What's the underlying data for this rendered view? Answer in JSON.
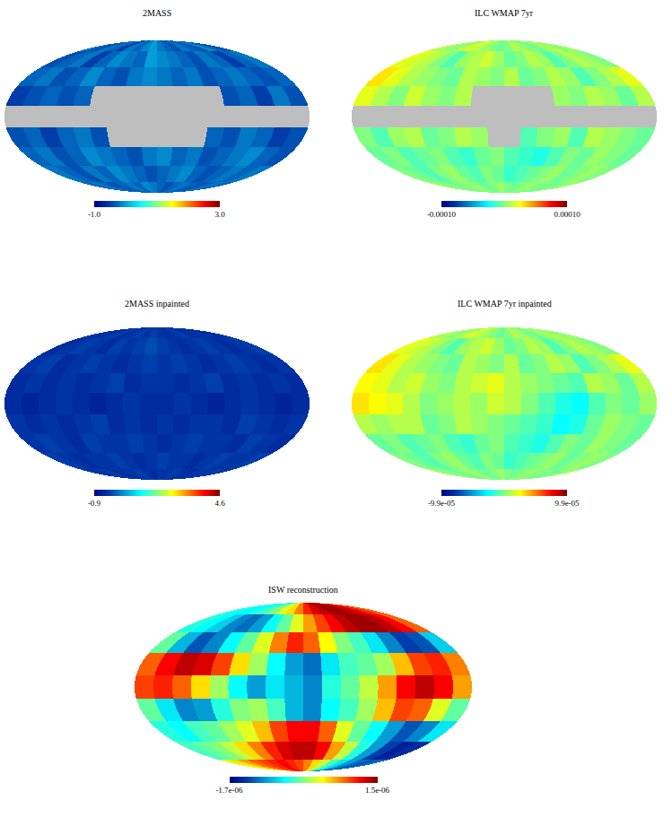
{
  "chart_data": [
    {
      "type": "map",
      "title": "2MASS",
      "tick_labels": false,
      "colorbar_range": [
        -1.0,
        3.0
      ],
      "colorbar_ticks": [
        {
          "value": -1.0,
          "label": "-1.0"
        },
        {
          "value": 3.0,
          "label": "3.0"
        }
      ],
      "cells": [
        [
          -0.3,
          -0.4,
          -0.2,
          -0.3,
          -0.5,
          -0.2,
          -0.3,
          -0.1,
          0,
          -0.2,
          -0.3,
          -0.4,
          -0.2,
          -0.3,
          -0.4,
          -0.1,
          -0.3,
          -0.4
        ],
        [
          -0.4,
          -0.3,
          -0.2,
          -0.5,
          -0.3,
          -0.1,
          -0.2,
          -0.3,
          0,
          -0.1,
          -0.2,
          -0.3,
          -0.4,
          -0.2,
          -0.3,
          -0.5,
          -0.3,
          -0.2
        ],
        [
          -0.3,
          -0.2,
          -0.4,
          -0.3,
          -0.1,
          -0.3,
          -0.4,
          -0.2,
          -0.1,
          -0.2,
          -0.3,
          -0.2,
          -0.4,
          -0.3,
          -0.2,
          -0.3,
          -0.4,
          -0.3
        ],
        [
          -0.5,
          -0.4,
          -0.3,
          -0.4,
          -0.3,
          null,
          null,
          null,
          null,
          null,
          null,
          null,
          null,
          -0.4,
          -0.3,
          -0.5,
          -0.2,
          -0.4
        ],
        [
          null,
          null,
          null,
          null,
          null,
          null,
          null,
          null,
          null,
          null,
          null,
          null,
          null,
          null,
          null,
          null,
          null,
          null
        ],
        [
          -0.4,
          -0.3,
          -0.5,
          -0.3,
          -0.2,
          -0.4,
          null,
          null,
          null,
          null,
          null,
          null,
          -0.3,
          -0.4,
          -0.2,
          -0.3,
          -0.5,
          -0.4
        ],
        [
          -0.3,
          -0.2,
          -0.4,
          -0.3,
          -0.1,
          -0.2,
          -0.3,
          -0.4,
          -0.2,
          -0.1,
          -0.3,
          -0.2,
          -0.4,
          -0.3,
          -0.2,
          -0.1,
          -0.3,
          -0.4
        ],
        [
          -0.2,
          -0.3,
          -0.4,
          -0.2,
          -0.3,
          -0.1,
          -0.2,
          -0.3,
          -0.4,
          -0.3,
          -0.2,
          -0.1,
          -0.3,
          -0.4,
          -0.3,
          -0.2,
          -0.3,
          -0.2
        ],
        [
          -0.3,
          -0.2,
          -0.3,
          -0.4,
          -0.3,
          -0.2,
          -0.3,
          -0.1,
          -0.2,
          -0.3,
          -0.4,
          -0.3,
          -0.2,
          -0.3,
          -0.4,
          -0.3,
          -0.2,
          -0.3
        ]
      ]
    },
    {
      "type": "map",
      "title": "ILC WMAP 7yr",
      "tick_labels": false,
      "colorbar_range": [
        -0.0001,
        0.0001
      ],
      "colorbar_ticks": [
        {
          "value": -0.0001,
          "label": "-0.00010"
        },
        {
          "value": 0.0001,
          "label": "0.00010"
        }
      ],
      "cells": [
        [
          1e-05,
          5e-06,
          0,
          1e-05,
          2e-05,
          1e-05,
          5e-06,
          0,
          -5e-06,
          0,
          1e-05,
          5e-06,
          0,
          -5e-06,
          5e-06,
          1e-05,
          0,
          5e-06
        ],
        [
          2e-05,
          1.5e-05,
          1e-05,
          0,
          -1e-05,
          5e-06,
          1e-05,
          1.5e-05,
          5e-06,
          -5e-06,
          0,
          1e-05,
          5e-06,
          -1e-05,
          0,
          1e-05,
          5e-06,
          0
        ],
        [
          3e-05,
          2e-05,
          1e-05,
          5e-06,
          0,
          -5e-06,
          1e-05,
          5e-06,
          0,
          1e-05,
          -5e-06,
          0,
          1e-05,
          5e-06,
          -1e-05,
          0,
          1e-05,
          2e-05
        ],
        [
          2e-05,
          1e-05,
          0,
          1.5e-05,
          5e-06,
          0,
          1e-05,
          null,
          null,
          null,
          null,
          null,
          5e-06,
          0,
          1e-05,
          5e-06,
          -5e-06,
          1e-05
        ],
        [
          null,
          null,
          null,
          null,
          null,
          null,
          null,
          null,
          null,
          null,
          null,
          null,
          null,
          null,
          null,
          null,
          null,
          null
        ],
        [
          0,
          -1e-05,
          5e-06,
          1e-05,
          -5e-06,
          0,
          1e-05,
          5e-06,
          null,
          null,
          -1e-05,
          0,
          5e-06,
          -1e-05,
          1e-05,
          5e-06,
          0,
          -5e-06
        ],
        [
          -5e-06,
          0,
          -1e-05,
          -5e-06,
          0,
          -1e-05,
          -1.5e-05,
          -5e-06,
          0,
          -1e-05,
          -1.5e-05,
          -2e-05,
          -1e-05,
          0,
          -5e-06,
          5e-06,
          0,
          -5e-06
        ],
        [
          0,
          -5e-06,
          -1e-05,
          0,
          5e-06,
          -5e-06,
          -1e-05,
          0,
          -5e-06,
          -1.5e-05,
          -1e-05,
          -5e-06,
          0,
          5e-06,
          -5e-06,
          0,
          5e-06,
          0
        ],
        [
          5e-06,
          0,
          -5e-06,
          0,
          5e-06,
          0,
          -5e-06,
          0,
          5e-06,
          0,
          -5e-06,
          0,
          5e-06,
          0,
          0,
          -5e-06,
          0,
          5e-06
        ]
      ]
    },
    {
      "type": "map",
      "title": "2MASS inpainted",
      "tick_labels": false,
      "colorbar_range": [
        -0.9,
        4.6
      ],
      "colorbar_ticks": [
        -0.9,
        4.6
      ],
      "cells": [
        [
          -0.3,
          -0.4,
          -0.3,
          -0.2,
          -0.4,
          -0.3,
          -0.2,
          -0.3,
          -0.2,
          -0.3,
          -0.4,
          -0.3,
          -0.2,
          -0.4,
          -0.3,
          -0.3,
          -0.4,
          -0.3
        ],
        [
          -0.4,
          -0.3,
          -0.2,
          -0.3,
          -0.4,
          -0.2,
          -0.3,
          -0.2,
          -0.1,
          -0.2,
          -0.3,
          -0.4,
          -0.3,
          -0.2,
          -0.3,
          -0.4,
          -0.3,
          -0.2
        ],
        [
          -0.3,
          -0.2,
          -0.4,
          -0.3,
          -0.2,
          -0.3,
          -0.4,
          -0.3,
          -0.2,
          -0.3,
          -0.2,
          -0.3,
          -0.4,
          -0.3,
          -0.2,
          -0.3,
          -0.4,
          -0.3
        ],
        [
          -0.4,
          -0.3,
          -0.4,
          -0.3,
          -0.4,
          -0.3,
          -0.2,
          -0.4,
          -0.3,
          -0.3,
          -0.4,
          -0.3,
          -0.2,
          -0.4,
          -0.3,
          -0.4,
          -0.3,
          -0.4
        ],
        [
          -0.4,
          -0.5,
          -0.4,
          -0.3,
          -0.4,
          -0.5,
          -0.4,
          -0.3,
          -0.4,
          -0.4,
          -0.3,
          -0.4,
          -0.5,
          -0.4,
          -0.3,
          -0.4,
          -0.5,
          -0.4
        ],
        [
          -0.3,
          -0.4,
          -0.3,
          -0.4,
          -0.3,
          -0.2,
          -0.4,
          -0.3,
          -0.4,
          -0.3,
          -0.4,
          -0.3,
          -0.3,
          -0.4,
          -0.2,
          -0.3,
          -0.4,
          -0.3
        ],
        [
          -0.3,
          -0.2,
          -0.3,
          -0.4,
          -0.2,
          -0.3,
          -0.3,
          -0.2,
          -0.3,
          -0.4,
          -0.3,
          -0.2,
          -0.3,
          -0.3,
          -0.4,
          -0.2,
          -0.3,
          -0.4
        ],
        [
          -0.2,
          -0.3,
          -0.4,
          -0.3,
          -0.3,
          -0.2,
          -0.3,
          -0.4,
          -0.3,
          -0.2,
          -0.3,
          -0.3,
          -0.4,
          -0.3,
          -0.2,
          -0.3,
          -0.3,
          -0.2
        ],
        [
          -0.3,
          -0.3,
          -0.2,
          -0.4,
          -0.3,
          -0.3,
          -0.2,
          -0.3,
          -0.4,
          -0.3,
          -0.3,
          -0.2,
          -0.3,
          -0.4,
          -0.3,
          -0.3,
          -0.2,
          -0.3
        ]
      ]
    },
    {
      "type": "map",
      "title": "ILC WMAP 7yr inpainted",
      "tick_labels": false,
      "colorbar_range": [
        -9.9e-05,
        9.9e-05
      ],
      "colorbar_ticks": [
        {
          "value": -9.9e-05,
          "label": "-9.9e-05"
        },
        {
          "value": 9.9e-05,
          "label": "9.9e-05"
        }
      ],
      "cells": [
        [
          1e-05,
          5e-06,
          0,
          1e-05,
          2e-05,
          1e-05,
          5e-06,
          0,
          -5e-06,
          0,
          1e-05,
          5e-06,
          0,
          -5e-06,
          5e-06,
          1e-05,
          0,
          5e-06
        ],
        [
          2e-05,
          1.5e-05,
          1e-05,
          0,
          -1e-05,
          5e-06,
          1e-05,
          1.5e-05,
          5e-06,
          -5e-06,
          0,
          1e-05,
          5e-06,
          -1e-05,
          0,
          1e-05,
          5e-06,
          0
        ],
        [
          3e-05,
          2e-05,
          1e-05,
          5e-06,
          0,
          -5e-06,
          1e-05,
          5e-06,
          0,
          1e-05,
          -5e-06,
          0,
          1e-05,
          5e-06,
          -1e-05,
          0,
          1e-05,
          2e-05
        ],
        [
          2.5e-05,
          2e-05,
          1e-05,
          1.5e-05,
          5e-06,
          0,
          1e-05,
          1.5e-05,
          2e-05,
          1e-05,
          5e-06,
          0,
          -5e-06,
          -1e-05,
          1e-05,
          5e-06,
          -5e-06,
          1e-05
        ],
        [
          3e-05,
          2.5e-05,
          2e-05,
          1e-05,
          0,
          5e-06,
          1e-05,
          5e-06,
          1.5e-05,
          1e-05,
          0,
          -1e-05,
          -2e-05,
          -2.5e-05,
          -1e-05,
          0,
          -5e-06,
          5e-06
        ],
        [
          1e-05,
          5e-06,
          1e-05,
          1e-05,
          -5e-06,
          0,
          1e-05,
          5e-06,
          0,
          -5e-06,
          -1e-05,
          -1.5e-05,
          -2.5e-05,
          -2e-05,
          -5e-06,
          5e-06,
          0,
          -5e-06
        ],
        [
          -5e-06,
          0,
          -1e-05,
          -5e-06,
          0,
          -1e-05,
          -1.5e-05,
          -5e-06,
          0,
          -1e-05,
          -1.5e-05,
          -2e-05,
          -1e-05,
          0,
          -5e-06,
          5e-06,
          0,
          -5e-06
        ],
        [
          0,
          -5e-06,
          -1e-05,
          0,
          5e-06,
          -5e-06,
          -1e-05,
          0,
          -5e-06,
          -1.5e-05,
          -1e-05,
          -5e-06,
          0,
          5e-06,
          -5e-06,
          0,
          5e-06,
          0
        ],
        [
          5e-06,
          0,
          -5e-06,
          0,
          5e-06,
          0,
          -5e-06,
          0,
          5e-06,
          0,
          -5e-06,
          0,
          5e-06,
          0,
          0,
          -5e-06,
          0,
          5e-06
        ]
      ]
    },
    {
      "type": "map",
      "title": "ISW reconstruction",
      "tick_labels": false,
      "colorbar_range": [
        -1.7e-06,
        1.5e-06
      ],
      "colorbar_ticks": [
        {
          "value": -1.7e-06,
          "label": "-1.7e-06"
        },
        {
          "value": 1.5e-06,
          "label": "1.5e-06"
        }
      ],
      "cells": [
        [
          -4e-07,
          -5e-07,
          -5e-07,
          -4e-07,
          -3e-07,
          -1e-07,
          2e-07,
          4e-07,
          7e-07,
          1e-06,
          1.2e-06,
          1.3e-06,
          1.4e-06,
          1.4e-06,
          1.3e-06,
          1.2e-06,
          1e-06,
          8e-07
        ],
        [
          -4e-07,
          -5e-07,
          -7e-07,
          -1e-06,
          -1.1e-06,
          -9e-07,
          -5e-07,
          -2e-07,
          2e-07,
          6e-07,
          9e-07,
          1.1e-06,
          1.3e-06,
          1.4e-06,
          1.4e-06,
          1.3e-06,
          1.1e-06,
          8e-07
        ],
        [
          -2e-07,
          -8e-07,
          -1.2e-06,
          -1e-06,
          -5e-07,
          -2e-07,
          2e-07,
          7e-07,
          1e-06,
          8e-07,
          3e-07,
          -1e-07,
          -3e-07,
          -6e-07,
          -1e-06,
          -1.3e-06,
          -1.2e-06,
          -7e-07
        ],
        [
          8e-07,
          1.1e-06,
          1.3e-06,
          1.2e-06,
          9e-07,
          4e-07,
          0,
          -5e-07,
          -9e-07,
          -1.1e-06,
          -6e-07,
          -3e-07,
          -2e-07,
          0,
          5e-07,
          9e-07,
          1e-06,
          7e-07
        ],
        [
          9e-07,
          1e-06,
          8e-07,
          4e-07,
          0,
          -5e-07,
          -9e-07,
          -6e-07,
          -8e-07,
          -1e-06,
          -4e-07,
          -2e-07,
          1e-07,
          6e-07,
          1.1e-06,
          1.3e-06,
          1.1e-06,
          6e-07
        ],
        [
          -2e-07,
          -6e-07,
          -1e-06,
          -9e-07,
          -4e-07,
          -1e-07,
          0,
          -3e-07,
          -8e-07,
          -1e-06,
          -5e-07,
          -3e-07,
          0,
          5e-07,
          9e-07,
          8e-07,
          2e-07,
          -2e-07
        ],
        [
          -4e-07,
          -5e-07,
          -3e-07,
          -2e-07,
          0,
          2e-07,
          5e-07,
          9e-07,
          1.1e-06,
          1.1e-06,
          8e-07,
          2e-07,
          -2e-07,
          -5e-07,
          -9e-07,
          -1.2e-06,
          -1e-06,
          -6e-07
        ],
        [
          -3e-07,
          -2e-07,
          -1e-07,
          1e-07,
          4e-07,
          7e-07,
          1e-06,
          1.2e-06,
          1.3e-06,
          1.3e-06,
          1.1e-06,
          6e-07,
          1e-07,
          -4e-07,
          -9e-07,
          -1.3e-06,
          -1.5e-06,
          -1.4e-06
        ],
        [
          2e-07,
          4e-07,
          6e-07,
          8e-07,
          9e-07,
          1e-06,
          1.1e-06,
          1e-06,
          9e-07,
          7e-07,
          4e-07,
          1e-07,
          -3e-07,
          -6e-07,
          -9e-07,
          -1.1e-06,
          -1.2e-06,
          -1.1e-06
        ]
      ]
    }
  ]
}
